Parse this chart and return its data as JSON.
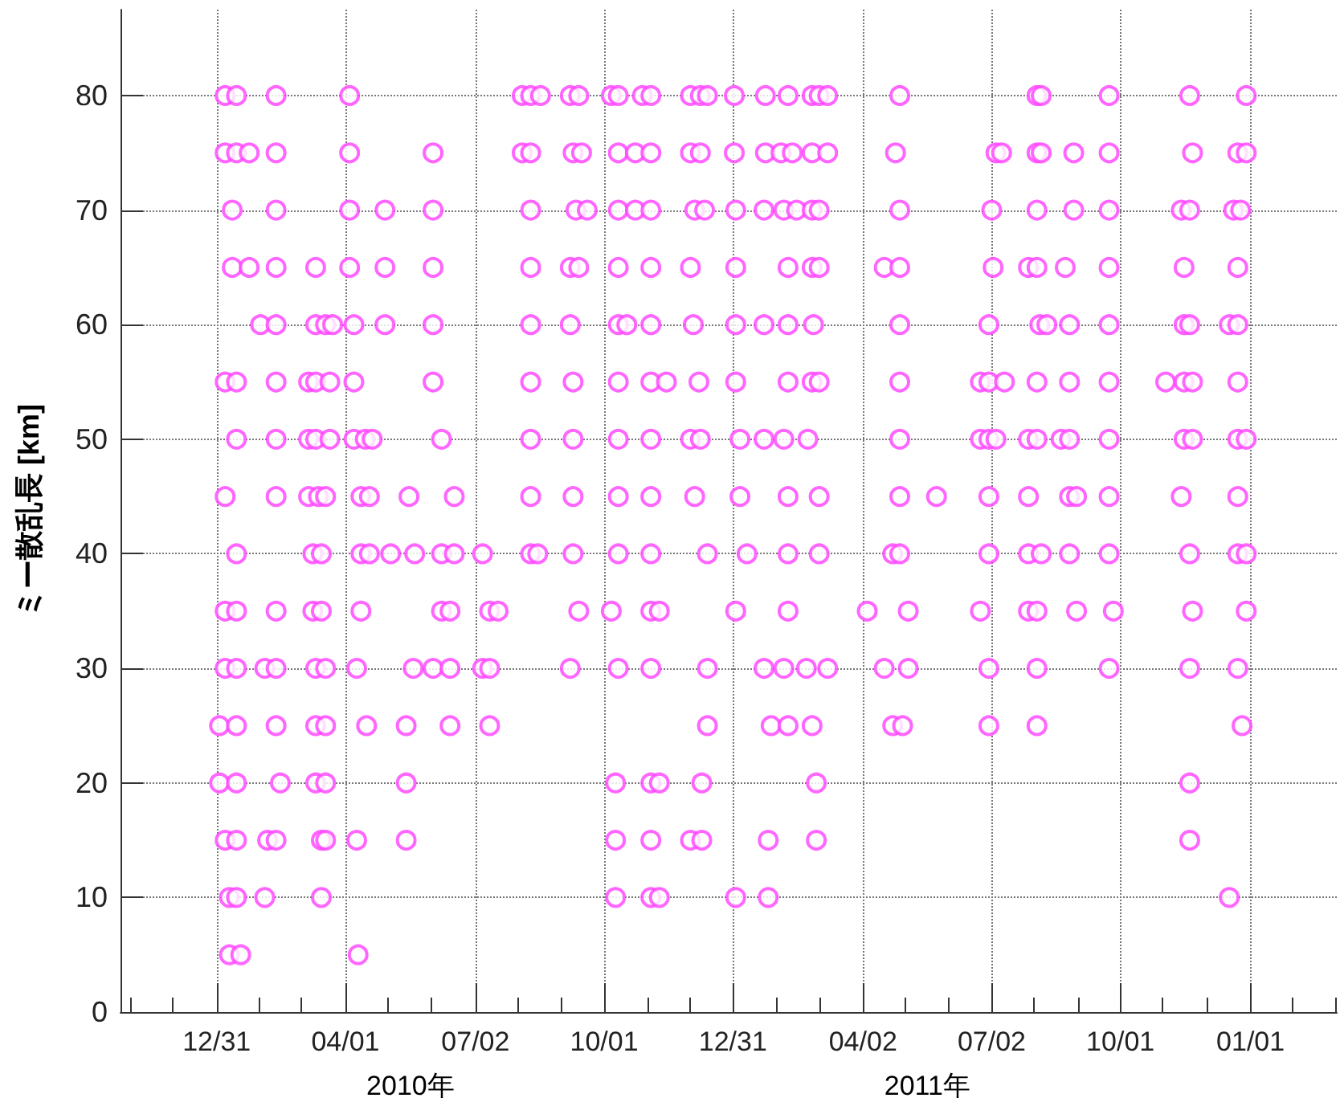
{
  "chart_data": {
    "type": "scatter",
    "ylabel": "ミー散乱長 [km]",
    "annotations": [
      "2010年",
      "2011年"
    ],
    "xlim": [
      "2009-10-24",
      "2012-03-02"
    ],
    "ylim": [
      0,
      87.5
    ],
    "yticks": [
      0,
      10,
      20,
      30,
      40,
      50,
      60,
      70,
      80
    ],
    "xticks": [
      {
        "value": "2009-10-31",
        "label": null
      },
      {
        "value": "2009-11-30",
        "label": null
      },
      {
        "value": "2009-12-31",
        "label": "12/31"
      },
      {
        "value": "2010-01-30",
        "label": null
      },
      {
        "value": "2010-03-01",
        "label": null
      },
      {
        "value": "2010-04-01",
        "label": "04/01"
      },
      {
        "value": "2010-05-01",
        "label": null
      },
      {
        "value": "2010-06-01",
        "label": null
      },
      {
        "value": "2010-07-02",
        "label": "07/02"
      },
      {
        "value": "2010-08-01",
        "label": null
      },
      {
        "value": "2010-09-01",
        "label": null
      },
      {
        "value": "2010-10-01",
        "label": "10/01"
      },
      {
        "value": "2010-11-01",
        "label": null
      },
      {
        "value": "2010-12-01",
        "label": null
      },
      {
        "value": "2010-12-31",
        "label": "12/31"
      },
      {
        "value": "2011-01-31",
        "label": null
      },
      {
        "value": "2011-03-02",
        "label": null
      },
      {
        "value": "2011-04-02",
        "label": "04/02"
      },
      {
        "value": "2011-05-02",
        "label": null
      },
      {
        "value": "2011-06-01",
        "label": null
      },
      {
        "value": "2011-07-02",
        "label": "07/02"
      },
      {
        "value": "2011-08-01",
        "label": null
      },
      {
        "value": "2011-09-01",
        "label": null
      },
      {
        "value": "2011-10-01",
        "label": "10/01"
      },
      {
        "value": "2011-10-31",
        "label": null
      },
      {
        "value": "2011-12-01",
        "label": null
      },
      {
        "value": "2012-01-01",
        "label": "01/01"
      },
      {
        "value": "2012-01-31",
        "label": null
      },
      {
        "value": "2012-03-01",
        "label": null
      }
    ],
    "grid": true,
    "marker": "circle",
    "series": [
      {
        "color": "#ff40ff",
        "x": [
          "2010-01-06",
          "2010-01-14",
          "2010-02-11",
          "2010-04-04",
          "2010-08-04",
          "2010-08-10",
          "2010-08-17",
          "2010-09-07",
          "2010-09-13",
          "2010-10-06",
          "2010-10-11",
          "2010-10-28",
          "2010-11-03",
          "2010-12-01",
          "2010-12-08",
          "2010-12-13",
          "2011-01-01",
          "2011-01-23",
          "2011-02-08",
          "2011-02-25",
          "2011-03-02",
          "2011-03-08",
          "2011-04-28",
          "2011-08-03",
          "2011-08-06",
          "2011-09-23",
          "2011-11-19",
          "2011-12-29"
        ],
        "values": [
          80,
          80,
          80,
          80,
          80,
          80,
          80,
          80,
          80,
          80,
          80,
          80,
          80,
          80,
          80,
          80,
          80,
          80,
          80,
          80,
          80,
          80,
          80,
          80,
          80,
          80,
          80,
          80
        ]
      },
      {
        "color": "#ff40ff",
        "x": [
          "2010-01-06",
          "2010-01-14",
          "2010-01-23",
          "2010-02-11",
          "2010-04-04",
          "2010-06-02",
          "2010-08-04",
          "2010-08-10",
          "2010-09-09",
          "2010-09-15",
          "2010-10-11",
          "2010-10-23",
          "2010-11-03",
          "2010-12-01",
          "2010-12-08",
          "2011-01-01",
          "2011-01-23",
          "2011-02-03",
          "2011-02-11",
          "2011-02-25",
          "2011-03-08",
          "2011-04-25",
          "2011-07-05",
          "2011-07-09",
          "2011-08-03",
          "2011-08-06",
          "2011-08-29",
          "2011-09-23",
          "2011-11-21",
          "2011-12-23",
          "2011-12-29"
        ],
        "values": [
          75,
          75,
          75,
          75,
          75,
          75,
          75,
          75,
          75,
          75,
          75,
          75,
          75,
          75,
          75,
          75,
          75,
          75,
          75,
          75,
          75,
          75,
          75,
          75,
          75,
          75,
          75,
          75,
          75,
          75,
          75
        ]
      },
      {
        "color": "#ff40ff",
        "x": [
          "2010-01-11",
          "2010-02-11",
          "2010-04-04",
          "2010-04-29",
          "2010-06-02",
          "2010-08-10",
          "2010-09-11",
          "2010-09-19",
          "2010-10-11",
          "2010-10-23",
          "2010-11-03",
          "2010-12-04",
          "2010-12-11",
          "2011-01-02",
          "2011-01-22",
          "2011-02-05",
          "2011-02-14",
          "2011-02-25",
          "2011-03-02",
          "2011-04-28",
          "2011-07-02",
          "2011-08-03",
          "2011-08-29",
          "2011-09-23",
          "2011-11-13",
          "2011-11-19",
          "2011-12-20",
          "2011-12-25"
        ],
        "values": [
          70,
          70,
          70,
          70,
          70,
          70,
          70,
          70,
          70,
          70,
          70,
          70,
          70,
          70,
          70,
          70,
          70,
          70,
          70,
          70,
          70,
          70,
          70,
          70,
          70,
          70,
          70,
          70
        ]
      },
      {
        "color": "#ff40ff",
        "x": [
          "2010-01-11",
          "2010-01-23",
          "2010-02-11",
          "2010-03-11",
          "2010-04-04",
          "2010-04-29",
          "2010-06-02",
          "2010-08-10",
          "2010-09-07",
          "2010-09-13",
          "2010-10-11",
          "2010-11-03",
          "2010-12-01",
          "2011-01-02",
          "2011-02-08",
          "2011-02-25",
          "2011-03-02",
          "2011-04-17",
          "2011-04-28",
          "2011-07-03",
          "2011-07-28",
          "2011-08-03",
          "2011-08-23",
          "2011-09-23",
          "2011-11-15",
          "2011-12-23"
        ],
        "values": [
          65,
          65,
          65,
          65,
          65,
          65,
          65,
          65,
          65,
          65,
          65,
          65,
          65,
          65,
          65,
          65,
          65,
          65,
          65,
          65,
          65,
          65,
          65,
          65,
          65,
          65
        ]
      },
      {
        "color": "#ff40ff",
        "x": [
          "2010-01-31",
          "2010-02-11",
          "2010-03-11",
          "2010-03-18",
          "2010-03-23",
          "2010-04-07",
          "2010-04-29",
          "2010-06-02",
          "2010-08-10",
          "2010-09-07",
          "2010-10-11",
          "2010-10-17",
          "2010-11-03",
          "2010-12-03",
          "2011-01-02",
          "2011-01-22",
          "2011-02-08",
          "2011-02-26",
          "2011-04-28",
          "2011-06-30",
          "2011-08-05",
          "2011-08-10",
          "2011-08-26",
          "2011-09-23",
          "2011-11-15",
          "2011-11-19",
          "2011-12-17",
          "2011-12-23"
        ],
        "values": [
          60,
          60,
          60,
          60,
          60,
          60,
          60,
          60,
          60,
          60,
          60,
          60,
          60,
          60,
          60,
          60,
          60,
          60,
          60,
          60,
          60,
          60,
          60,
          60,
          60,
          60,
          60,
          60
        ]
      },
      {
        "color": "#ff40ff",
        "x": [
          "2010-01-06",
          "2010-01-14",
          "2010-02-11",
          "2010-03-06",
          "2010-03-11",
          "2010-03-21",
          "2010-04-07",
          "2010-06-02",
          "2010-08-10",
          "2010-09-09",
          "2010-10-11",
          "2010-11-03",
          "2010-11-14",
          "2010-12-07",
          "2011-01-02",
          "2011-02-08",
          "2011-02-25",
          "2011-03-02",
          "2011-04-28",
          "2011-06-24",
          "2011-06-30",
          "2011-07-11",
          "2011-08-03",
          "2011-08-26",
          "2011-09-23",
          "2011-11-02",
          "2011-11-15",
          "2011-11-21",
          "2011-12-23"
        ],
        "values": [
          55,
          55,
          55,
          55,
          55,
          55,
          55,
          55,
          55,
          55,
          55,
          55,
          55,
          55,
          55,
          55,
          55,
          55,
          55,
          55,
          55,
          55,
          55,
          55,
          55,
          55,
          55,
          55,
          55
        ]
      },
      {
        "color": "#ff40ff",
        "x": [
          "2010-01-14",
          "2010-02-11",
          "2010-03-06",
          "2010-03-11",
          "2010-03-21",
          "2010-04-07",
          "2010-04-15",
          "2010-04-20",
          "2010-06-08",
          "2010-08-10",
          "2010-09-09",
          "2010-10-11",
          "2010-11-03",
          "2010-12-01",
          "2010-12-08",
          "2011-01-05",
          "2011-01-22",
          "2011-02-05",
          "2011-02-22",
          "2011-04-28",
          "2011-06-24",
          "2011-06-30",
          "2011-07-05",
          "2011-07-28",
          "2011-08-03",
          "2011-08-20",
          "2011-08-26",
          "2011-09-23",
          "2011-11-15",
          "2011-11-21",
          "2011-12-23",
          "2011-12-29"
        ],
        "values": [
          50,
          50,
          50,
          50,
          50,
          50,
          50,
          50,
          50,
          50,
          50,
          50,
          50,
          50,
          50,
          50,
          50,
          50,
          50,
          50,
          50,
          50,
          50,
          50,
          50,
          50,
          50,
          50,
          50,
          50,
          50,
          50
        ]
      },
      {
        "color": "#ff40ff",
        "x": [
          "2010-01-06",
          "2010-02-11",
          "2010-03-06",
          "2010-03-13",
          "2010-03-18",
          "2010-04-12",
          "2010-04-18",
          "2010-05-16",
          "2010-06-17",
          "2010-08-10",
          "2010-09-09",
          "2010-10-11",
          "2010-11-03",
          "2010-12-04",
          "2011-01-05",
          "2011-02-08",
          "2011-03-02",
          "2011-04-28",
          "2011-05-24",
          "2011-06-30",
          "2011-07-28",
          "2011-08-26",
          "2011-08-31",
          "2011-09-23",
          "2011-11-13",
          "2011-12-23"
        ],
        "values": [
          45,
          45,
          45,
          45,
          45,
          45,
          45,
          45,
          45,
          45,
          45,
          45,
          45,
          45,
          45,
          45,
          45,
          45,
          45,
          45,
          45,
          45,
          45,
          45,
          45,
          45
        ]
      },
      {
        "color": "#ff40ff",
        "x": [
          "2010-01-14",
          "2010-03-09",
          "2010-03-15",
          "2010-04-12",
          "2010-04-18",
          "2010-05-03",
          "2010-05-20",
          "2010-06-08",
          "2010-06-17",
          "2010-07-07",
          "2010-08-10",
          "2010-08-15",
          "2010-09-09",
          "2010-10-11",
          "2010-11-03",
          "2010-12-13",
          "2011-01-10",
          "2011-02-08",
          "2011-03-02",
          "2011-04-23",
          "2011-04-28",
          "2011-06-30",
          "2011-07-28",
          "2011-08-06",
          "2011-08-26",
          "2011-09-23",
          "2011-11-19",
          "2011-12-23",
          "2011-12-29"
        ],
        "values": [
          40,
          40,
          40,
          40,
          40,
          40,
          40,
          40,
          40,
          40,
          40,
          40,
          40,
          40,
          40,
          40,
          40,
          40,
          40,
          40,
          40,
          40,
          40,
          40,
          40,
          40,
          40,
          40,
          40
        ]
      },
      {
        "color": "#ff40ff",
        "x": [
          "2010-01-06",
          "2010-01-14",
          "2010-02-11",
          "2010-03-09",
          "2010-03-15",
          "2010-04-12",
          "2010-06-08",
          "2010-06-14",
          "2010-07-12",
          "2010-07-18",
          "2010-09-13",
          "2010-10-06",
          "2010-11-03",
          "2010-11-09",
          "2011-01-02",
          "2011-02-08",
          "2011-04-05",
          "2011-05-04",
          "2011-06-24",
          "2011-07-28",
          "2011-08-03",
          "2011-08-31",
          "2011-09-26",
          "2011-11-21",
          "2011-12-29"
        ],
        "values": [
          35,
          35,
          35,
          35,
          35,
          35,
          35,
          35,
          35,
          35,
          35,
          35,
          35,
          35,
          35,
          35,
          35,
          35,
          35,
          35,
          35,
          35,
          35,
          35,
          35
        ]
      },
      {
        "color": "#ff40ff",
        "x": [
          "2010-01-06",
          "2010-01-14",
          "2010-02-03",
          "2010-02-11",
          "2010-03-11",
          "2010-03-18",
          "2010-04-09",
          "2010-05-19",
          "2010-06-02",
          "2010-06-14",
          "2010-07-07",
          "2010-07-12",
          "2010-09-07",
          "2010-10-11",
          "2010-11-03",
          "2010-12-13",
          "2011-01-22",
          "2011-02-05",
          "2011-02-21",
          "2011-03-08",
          "2011-04-17",
          "2011-05-04",
          "2011-06-30",
          "2011-08-03",
          "2011-09-23",
          "2011-11-19",
          "2011-12-23"
        ],
        "values": [
          30,
          30,
          30,
          30,
          30,
          30,
          30,
          30,
          30,
          30,
          30,
          30,
          30,
          30,
          30,
          30,
          30,
          30,
          30,
          30,
          30,
          30,
          30,
          30,
          30,
          30,
          30
        ]
      },
      {
        "color": "#ff40ff",
        "x": [
          "2010-01-02",
          "2010-01-14",
          "2010-02-11",
          "2010-03-11",
          "2010-03-18",
          "2010-04-16",
          "2010-05-14",
          "2010-06-14",
          "2010-07-12",
          "2010-12-13",
          "2011-01-27",
          "2011-02-08",
          "2011-02-25",
          "2011-04-23",
          "2011-04-30",
          "2011-06-30",
          "2011-08-03",
          "2011-12-26"
        ],
        "values": [
          25,
          25,
          25,
          25,
          25,
          25,
          25,
          25,
          25,
          25,
          25,
          25,
          25,
          25,
          25,
          25,
          25,
          25
        ]
      },
      {
        "color": "#ff40ff",
        "x": [
          "2010-01-02",
          "2010-01-14",
          "2010-02-14",
          "2010-03-11",
          "2010-03-18",
          "2010-05-14",
          "2010-10-09",
          "2010-11-03",
          "2010-11-09",
          "2010-12-09",
          "2011-02-28",
          "2011-11-19"
        ],
        "values": [
          20,
          20,
          20,
          20,
          20,
          20,
          20,
          20,
          20,
          20,
          20,
          20
        ]
      },
      {
        "color": "#ff40ff",
        "x": [
          "2010-01-06",
          "2010-01-14",
          "2010-02-05",
          "2010-02-11",
          "2010-03-15",
          "2010-03-18",
          "2010-04-09",
          "2010-05-14",
          "2010-10-09",
          "2010-11-03",
          "2010-12-01",
          "2010-12-09",
          "2011-01-25",
          "2011-02-28",
          "2011-11-19"
        ],
        "values": [
          15,
          15,
          15,
          15,
          15,
          15,
          15,
          15,
          15,
          15,
          15,
          15,
          15,
          15,
          15
        ]
      },
      {
        "color": "#ff40ff",
        "x": [
          "2010-01-09",
          "2010-01-14",
          "2010-02-03",
          "2010-03-15",
          "2010-10-09",
          "2010-11-03",
          "2010-11-09",
          "2011-01-02",
          "2011-01-25",
          "2011-12-17"
        ],
        "values": [
          10,
          10,
          10,
          10,
          10,
          10,
          10,
          10,
          10,
          10
        ]
      },
      {
        "color": "#ff40ff",
        "x": [
          "2010-01-09",
          "2010-01-17",
          "2010-04-10"
        ],
        "values": [
          5,
          5,
          5
        ]
      }
    ]
  }
}
